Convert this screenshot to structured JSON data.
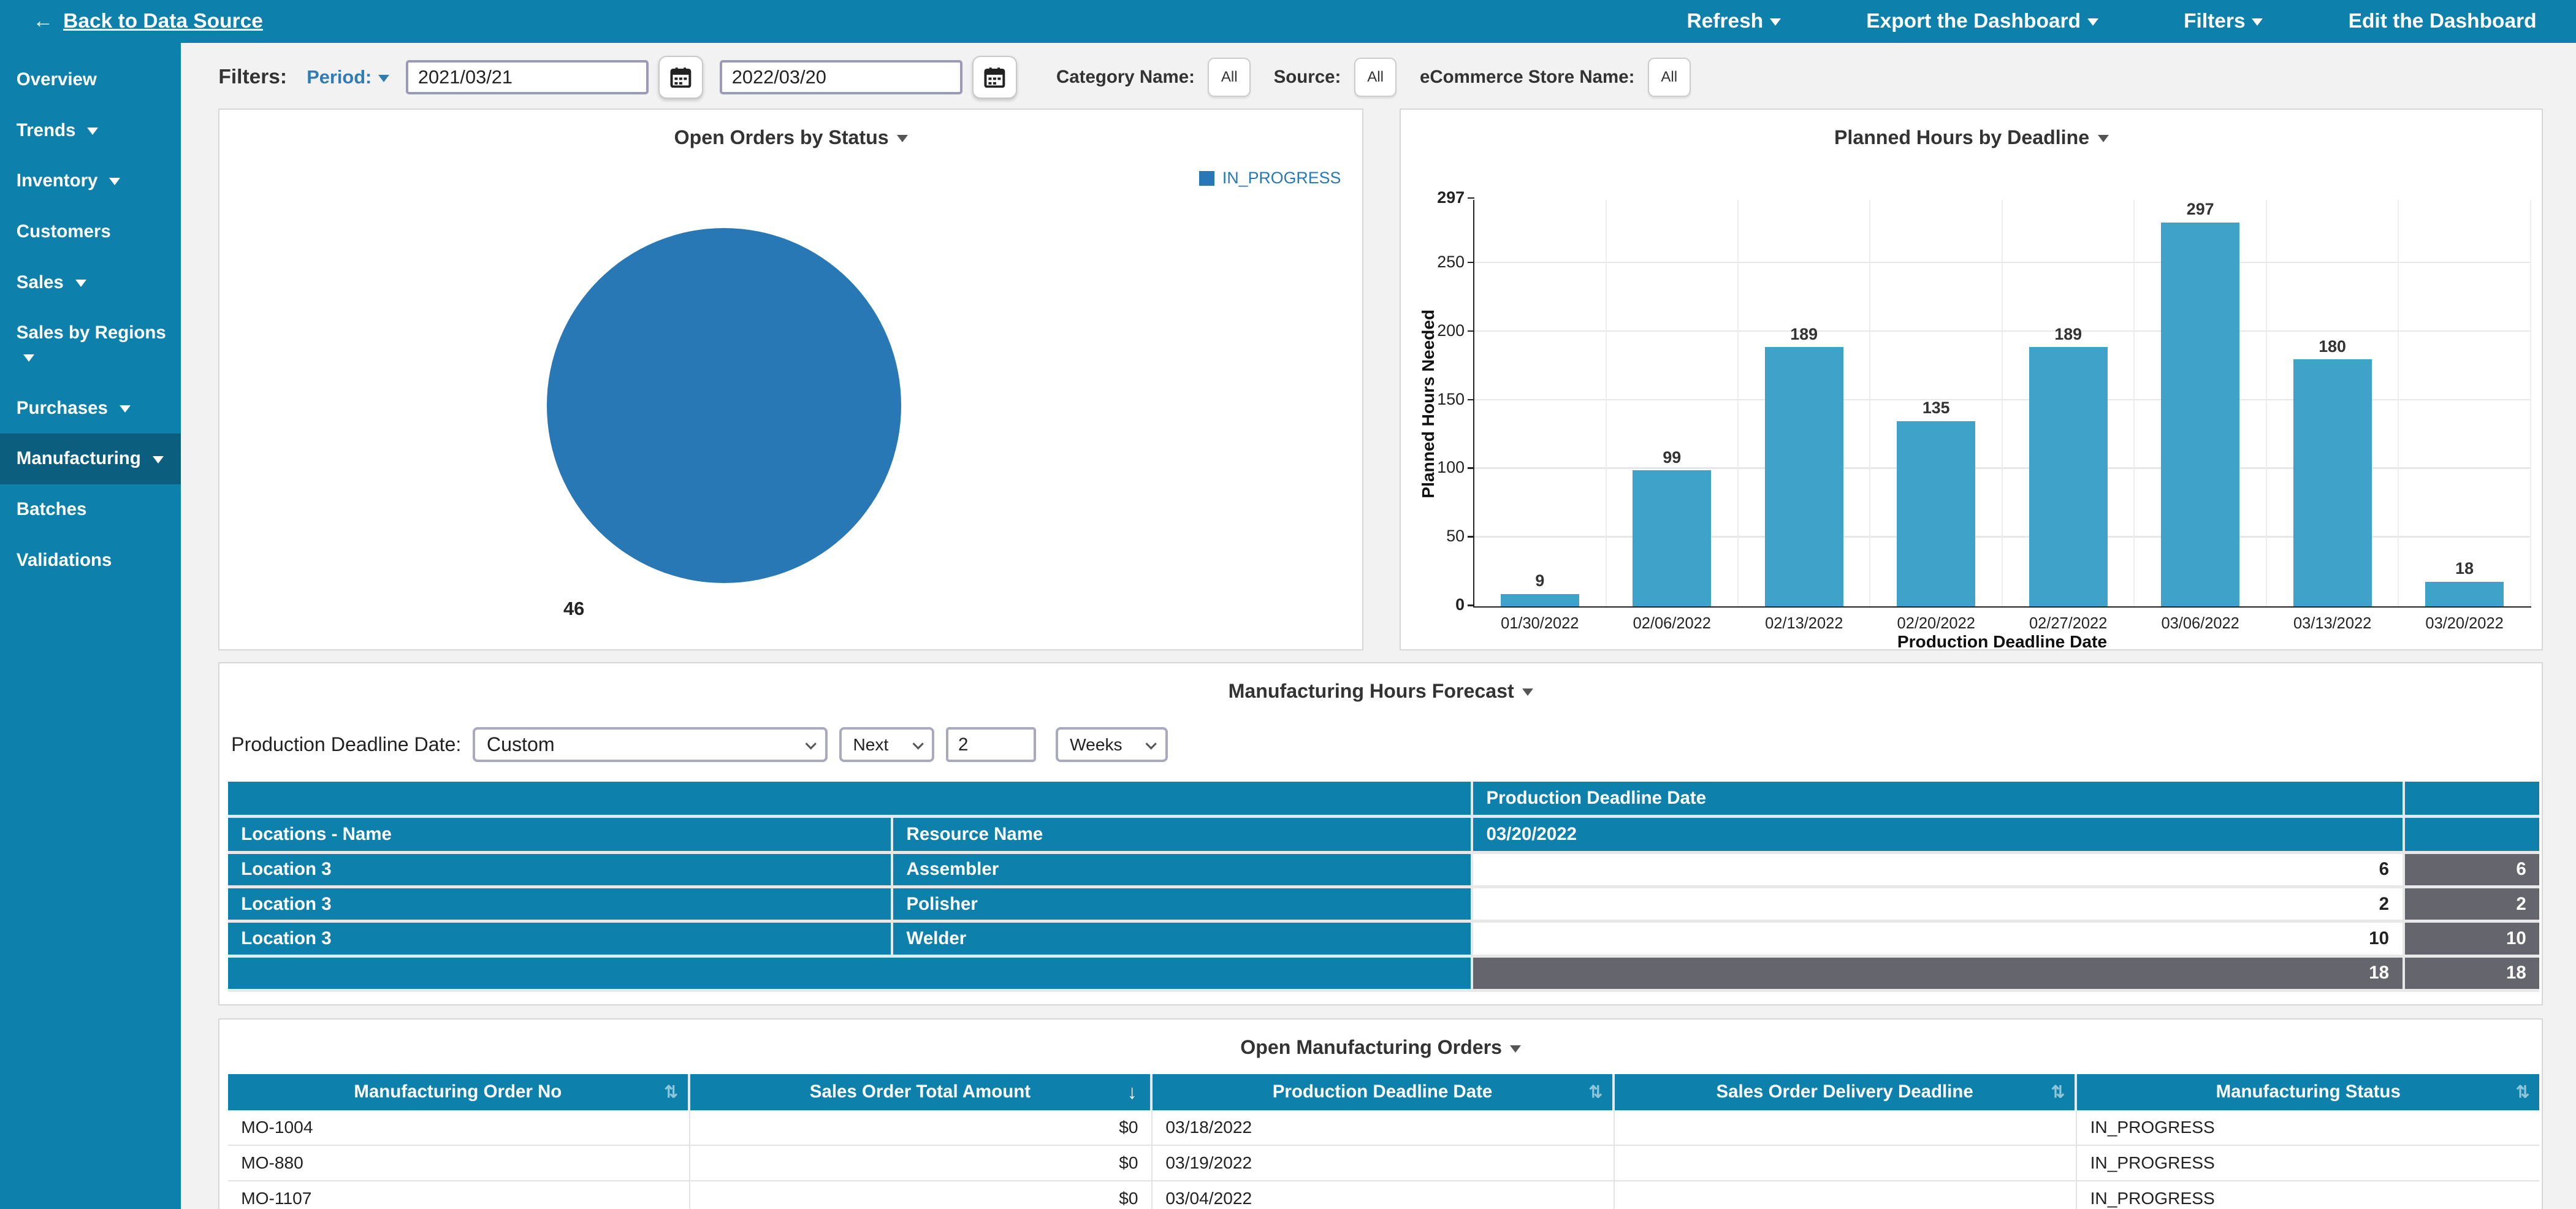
{
  "colors": {
    "brand_teal": "#0d81ab",
    "active_teal": "#0b5e7d",
    "pie_blue": "#2878b5",
    "bar_blue": "#3fa2c8",
    "total_gray": "#65656d",
    "link_blue": "#2f7cb6"
  },
  "topbar": {
    "back_label": "Back to Data Source",
    "menus": [
      {
        "label": "Refresh",
        "has_caret": true
      },
      {
        "label": "Export the Dashboard",
        "has_caret": true
      },
      {
        "label": "Filters",
        "has_caret": true
      },
      {
        "label": "Edit the Dashboard",
        "has_caret": false
      }
    ]
  },
  "sidebar": {
    "items": [
      {
        "label": "Overview"
      },
      {
        "label": "Trends"
      },
      {
        "label": "Inventory"
      },
      {
        "label": "Customers"
      },
      {
        "label": "Sales"
      },
      {
        "label": "Sales by Regions"
      },
      {
        "label": "Purchases"
      },
      {
        "label": "Manufacturing"
      },
      {
        "label": "Batches"
      },
      {
        "label": "Validations"
      }
    ]
  },
  "filters": {
    "label": "Filters:",
    "period_label": "Period:",
    "date_from": "2021/03/21",
    "date_to": "2022/03/20",
    "category_label": "Category Name:",
    "category_value": "All",
    "source_label": "Source:",
    "source_value": "All",
    "store_label": "eCommerce Store Name:",
    "store_value": "All"
  },
  "chart_data": [
    {
      "type": "pie",
      "title": "Open Orders by Status",
      "labels": [
        "IN_PROGRESS"
      ],
      "values": [
        46
      ],
      "colors": [
        "#2878b5"
      ],
      "legend_position": "right",
      "value_label": 46
    },
    {
      "type": "bar",
      "title": "Planned Hours by Deadline",
      "categories": [
        "01/30/2022",
        "02/06/2022",
        "02/13/2022",
        "02/20/2022",
        "02/27/2022",
        "03/06/2022",
        "03/13/2022",
        "03/20/2022"
      ],
      "values": [
        9,
        99,
        189,
        135,
        189,
        297,
        180,
        18
      ],
      "xlabel": "Production Deadline Date",
      "ylabel": "Planned Hours Needed",
      "ylim": [
        0,
        297
      ],
      "yticks": [
        0,
        50,
        100,
        150,
        200,
        250,
        297
      ],
      "bar_color": "#3fa2c8",
      "grid": true,
      "legend_position": "none"
    }
  ],
  "forecast": {
    "title": "Manufacturing Hours Forecast",
    "control_label": "Production Deadline Date:",
    "period_select": "Custom",
    "direction_select": "Next",
    "count_input": "2",
    "unit_select": "Weeks",
    "table": {
      "group_header": "Production Deadline Date",
      "location_header": "Locations - Name",
      "resource_header": "Resource Name",
      "date_header": "03/20/2022",
      "rows": [
        {
          "location": "Location 3",
          "resource": "Assembler",
          "hours": 6,
          "total": 6
        },
        {
          "location": "Location 3",
          "resource": "Polisher",
          "hours": 2,
          "total": 2
        },
        {
          "location": "Location 3",
          "resource": "Welder",
          "hours": 10,
          "total": 10
        }
      ],
      "grand_hours": 18,
      "grand_total": 18
    }
  },
  "orders": {
    "title": "Open Manufacturing Orders",
    "columns": [
      "Manufacturing Order No",
      "Sales Order Total Amount",
      "Production Deadline Date",
      "Sales Order Delivery Deadline",
      "Manufacturing Status"
    ],
    "sorted_column": "Sales Order Total Amount",
    "rows": [
      [
        "MO-1004",
        "$0",
        "03/18/2022",
        "",
        "IN_PROGRESS"
      ],
      [
        "MO-880",
        "$0",
        "03/19/2022",
        "",
        "IN_PROGRESS"
      ],
      [
        "MO-1107",
        "$0",
        "03/04/2022",
        "",
        "IN_PROGRESS"
      ]
    ]
  }
}
